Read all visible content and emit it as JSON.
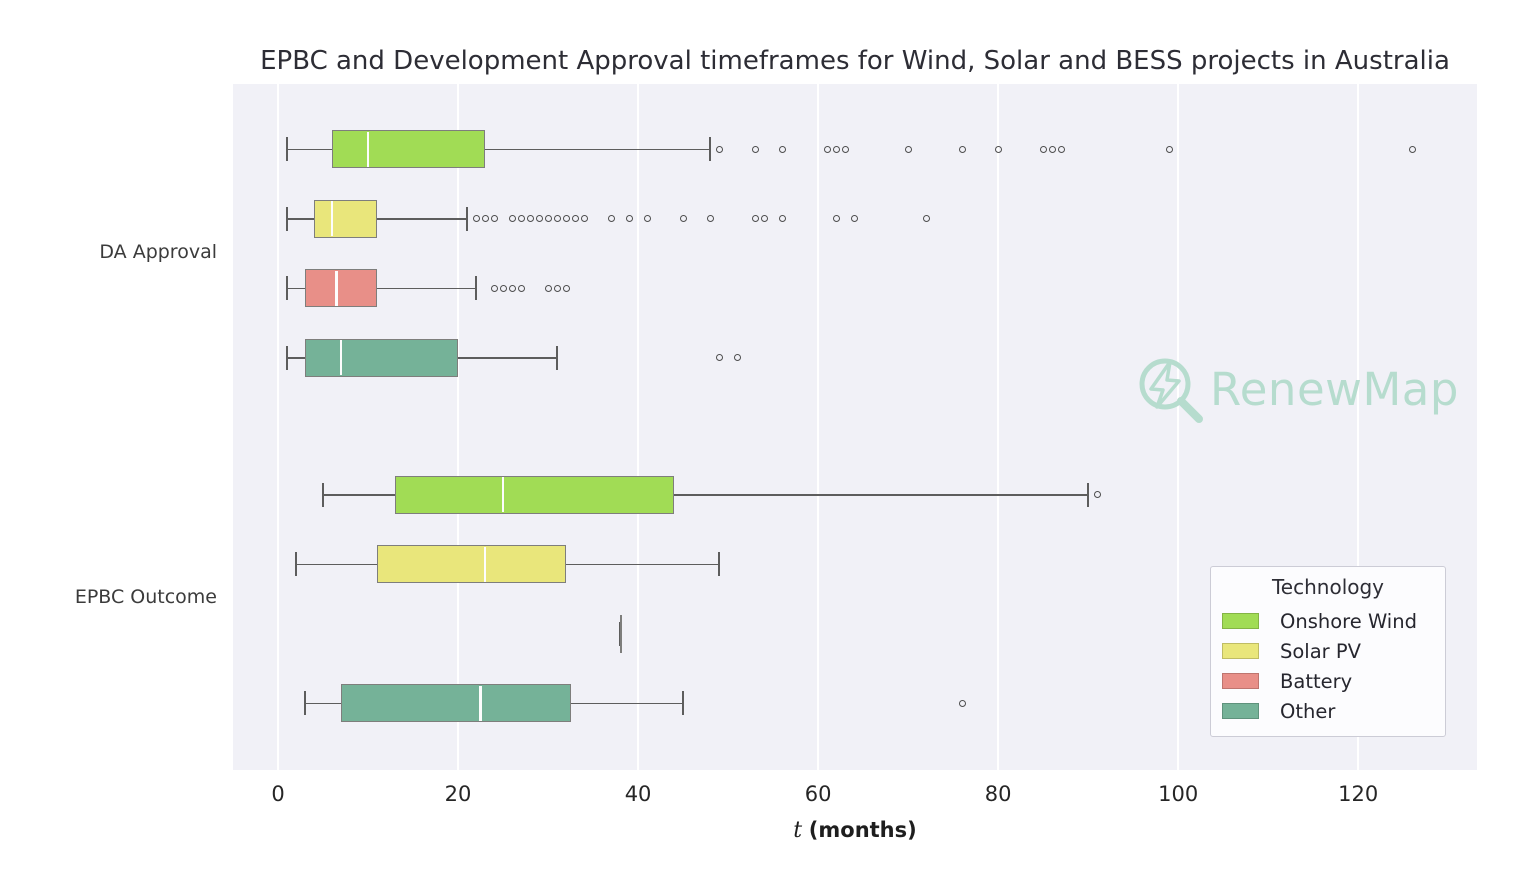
{
  "title": "EPBC and Development Approval timeframes for Wind, Solar and BESS projects in Australia",
  "watermark": {
    "text": "RenewMap",
    "color": "#b6dcce"
  },
  "legend": {
    "title": "Technology",
    "entries": [
      {
        "label": "Onshore Wind",
        "color": "#a1dc55"
      },
      {
        "label": "Solar PV",
        "color": "#e9e67b"
      },
      {
        "label": "Battery",
        "color": "#e88f88"
      },
      {
        "label": "Other",
        "color": "#75b298"
      }
    ]
  },
  "colors": {
    "plot_background": "#f1f1f7",
    "gridline": "#ffffff",
    "whisker": "#5d5d5d",
    "outlier_stroke": "#4e4e4e",
    "median_line": "#fdfdfd"
  },
  "chart_data": {
    "type": "box",
    "orientation": "horizontal",
    "title": "EPBC and Development Approval timeframes for Wind, Solar and BESS projects in Australia",
    "xlabel": {
      "italic": "t",
      "bold": "(months)"
    },
    "xlim": [
      -5,
      133.2
    ],
    "xticks": [
      0,
      20,
      40,
      60,
      80,
      100,
      120
    ],
    "grid": "vertical white gridlines on light lavender background",
    "legend_position": "lower right",
    "groups": [
      {
        "label": "DA Approval",
        "boxes": [
          {
            "tech": "Onshore Wind",
            "color": "#a1dc55",
            "whisker_low": 1,
            "q1": 6,
            "median": 10,
            "q3": 23,
            "whisker_high": 48,
            "outliers": [
              49,
              53,
              56,
              61,
              62,
              63,
              70,
              76,
              80,
              85,
              86,
              87,
              99,
              126
            ]
          },
          {
            "tech": "Solar PV",
            "color": "#e9e67b",
            "whisker_low": 1,
            "q1": 4,
            "median": 6,
            "q3": 11,
            "whisker_high": 21,
            "outliers": [
              22,
              23,
              24,
              26,
              27,
              28,
              29,
              30,
              31,
              32,
              33,
              34,
              37,
              39,
              41,
              45,
              48,
              53,
              54,
              56,
              62,
              64,
              72
            ]
          },
          {
            "tech": "Battery",
            "color": "#e88f88",
            "whisker_low": 1,
            "q1": 3,
            "median": 6.5,
            "q3": 11,
            "whisker_high": 22,
            "outliers": [
              24,
              25,
              26,
              27,
              30,
              31,
              32
            ]
          },
          {
            "tech": "Other",
            "color": "#75b298",
            "whisker_low": 1,
            "q1": 3,
            "median": 7,
            "q3": 20,
            "whisker_high": 31,
            "outliers": [
              49,
              51
            ]
          }
        ]
      },
      {
        "label": "EPBC Outcome",
        "boxes": [
          {
            "tech": "Onshore Wind",
            "color": "#a1dc55",
            "whisker_low": 5,
            "q1": 13,
            "median": 25,
            "q3": 44,
            "whisker_high": 90,
            "outliers": [
              91
            ]
          },
          {
            "tech": "Solar PV",
            "color": "#e9e67b",
            "whisker_low": 2,
            "q1": 11,
            "median": 23,
            "q3": 32,
            "whisker_high": 49,
            "outliers": []
          },
          {
            "tech": "Battery",
            "color": "#e88f88",
            "whisker_low": 38,
            "q1": 38,
            "median": 38,
            "q3": 38,
            "whisker_high": 38,
            "outliers": []
          },
          {
            "tech": "Other",
            "color": "#75b298",
            "whisker_low": 3,
            "q1": 7,
            "median": 22.5,
            "q3": 32.5,
            "whisker_high": 45,
            "outliers": [
              76
            ]
          }
        ]
      }
    ]
  }
}
